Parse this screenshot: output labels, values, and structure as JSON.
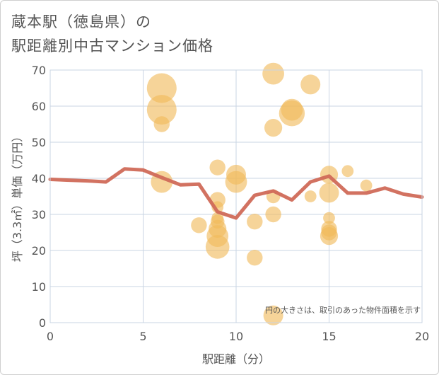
{
  "title": {
    "line1": "蔵本駅（徳島県）の",
    "line2": "駅距離別中古マンション価格"
  },
  "chart_data": {
    "type": "scatter",
    "xlabel": "駅距離（分）",
    "ylabel": "坪（3.3㎡）単価（万円）",
    "xlim": [
      0,
      20
    ],
    "ylim": [
      0,
      70
    ],
    "xticks": [
      0,
      5,
      10,
      15,
      20
    ],
    "yticks": [
      0,
      10,
      20,
      30,
      40,
      50,
      60,
      70
    ],
    "grid": true,
    "note": "円の大きさは、取引のあった物件面積を示す",
    "colors": {
      "bubble": "#f0b95a",
      "line": "#d06a58",
      "grid": "#c9d4e3"
    },
    "points": [
      {
        "x": 6,
        "y": 65,
        "size": 3
      },
      {
        "x": 6,
        "y": 59,
        "size": 3
      },
      {
        "x": 6,
        "y": 55,
        "size": 1.6
      },
      {
        "x": 6,
        "y": 39,
        "size": 2.2
      },
      {
        "x": 8,
        "y": 27,
        "size": 1.6
      },
      {
        "x": 9,
        "y": 43,
        "size": 1.6
      },
      {
        "x": 9,
        "y": 34,
        "size": 1.6
      },
      {
        "x": 9,
        "y": 32,
        "size": 1.2
      },
      {
        "x": 9,
        "y": 29,
        "size": 1.2
      },
      {
        "x": 9,
        "y": 28,
        "size": 1.4
      },
      {
        "x": 9,
        "y": 26,
        "size": 1.8
      },
      {
        "x": 9,
        "y": 24,
        "size": 2.2
      },
      {
        "x": 9,
        "y": 21,
        "size": 2.4
      },
      {
        "x": 10,
        "y": 41,
        "size": 2.0
      },
      {
        "x": 10,
        "y": 39,
        "size": 2.2
      },
      {
        "x": 11,
        "y": 28,
        "size": 1.6
      },
      {
        "x": 11,
        "y": 18,
        "size": 1.6
      },
      {
        "x": 12,
        "y": 69,
        "size": 2.2
      },
      {
        "x": 12,
        "y": 54,
        "size": 1.8
      },
      {
        "x": 12,
        "y": 35,
        "size": 1.4
      },
      {
        "x": 12,
        "y": 30,
        "size": 1.6
      },
      {
        "x": 12,
        "y": 2,
        "size": 2.0
      },
      {
        "x": 13,
        "y": 59,
        "size": 2.2
      },
      {
        "x": 13,
        "y": 58,
        "size": 2.6
      },
      {
        "x": 14,
        "y": 66,
        "size": 2.0
      },
      {
        "x": 14,
        "y": 35,
        "size": 1.2
      },
      {
        "x": 15,
        "y": 41,
        "size": 1.8
      },
      {
        "x": 15,
        "y": 36,
        "size": 2.0
      },
      {
        "x": 15,
        "y": 29,
        "size": 1.2
      },
      {
        "x": 15,
        "y": 26,
        "size": 1.6
      },
      {
        "x": 15,
        "y": 25,
        "size": 1.6
      },
      {
        "x": 15,
        "y": 24,
        "size": 1.8
      },
      {
        "x": 16,
        "y": 42,
        "size": 1.2
      },
      {
        "x": 17,
        "y": 38,
        "size": 1.2
      }
    ],
    "line": [
      {
        "x": 0,
        "y": 39.7
      },
      {
        "x": 1,
        "y": 39.5
      },
      {
        "x": 2,
        "y": 39.3
      },
      {
        "x": 3,
        "y": 39.0
      },
      {
        "x": 4,
        "y": 42.6
      },
      {
        "x": 5,
        "y": 42.3
      },
      {
        "x": 6,
        "y": 40.2
      },
      {
        "x": 7,
        "y": 38.2
      },
      {
        "x": 8,
        "y": 38.4
      },
      {
        "x": 9,
        "y": 30.7
      },
      {
        "x": 10,
        "y": 29.0
      },
      {
        "x": 11,
        "y": 35.3
      },
      {
        "x": 12,
        "y": 36.5
      },
      {
        "x": 13,
        "y": 34.0
      },
      {
        "x": 14,
        "y": 39.0
      },
      {
        "x": 15,
        "y": 40.6
      },
      {
        "x": 16,
        "y": 35.9
      },
      {
        "x": 17,
        "y": 35.9
      },
      {
        "x": 18,
        "y": 37.3
      },
      {
        "x": 19,
        "y": 35.6
      },
      {
        "x": 20,
        "y": 34.8
      }
    ]
  }
}
